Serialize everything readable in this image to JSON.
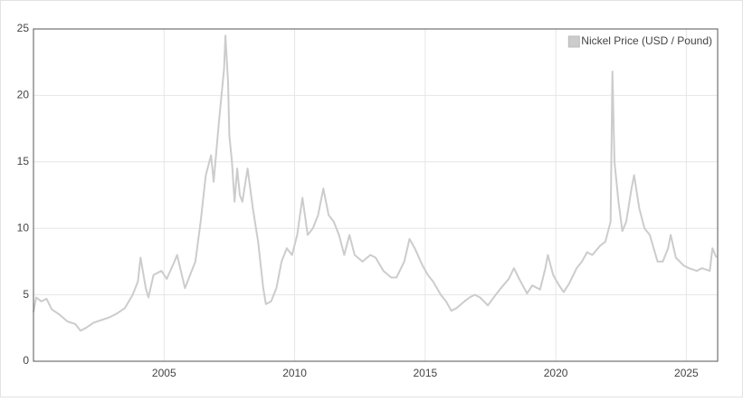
{
  "chart_data": {
    "type": "line",
    "xlim": [
      2000,
      2026.2
    ],
    "xticks": [
      2005,
      2010,
      2015,
      2020,
      2025
    ],
    "ylim": [
      0,
      25
    ],
    "yticks": [
      0,
      5,
      10,
      15,
      20,
      25
    ],
    "grid": true,
    "legend": "top-right",
    "x": [
      2000.0,
      2000.1,
      2000.3,
      2000.5,
      2000.7,
      2001.0,
      2001.3,
      2001.6,
      2001.8,
      2002.0,
      2002.3,
      2002.6,
      2002.9,
      2003.2,
      2003.5,
      2003.8,
      2004.0,
      2004.1,
      2004.3,
      2004.4,
      2004.6,
      2004.9,
      2005.1,
      2005.4,
      2005.5,
      2005.8,
      2006.0,
      2006.2,
      2006.4,
      2006.6,
      2006.8,
      2006.9,
      2007.1,
      2007.3,
      2007.35,
      2007.45,
      2007.5,
      2007.6,
      2007.7,
      2007.8,
      2007.9,
      2008.0,
      2008.2,
      2008.4,
      2008.6,
      2008.8,
      2008.9,
      2009.1,
      2009.3,
      2009.5,
      2009.7,
      2009.9,
      2010.1,
      2010.3,
      2010.5,
      2010.7,
      2010.9,
      2011.1,
      2011.3,
      2011.5,
      2011.7,
      2011.9,
      2012.1,
      2012.3,
      2012.6,
      2012.9,
      2013.1,
      2013.4,
      2013.7,
      2013.9,
      2014.2,
      2014.4,
      2014.6,
      2014.9,
      2015.1,
      2015.3,
      2015.6,
      2015.8,
      2016.0,
      2016.2,
      2016.5,
      2016.7,
      2016.9,
      2017.1,
      2017.4,
      2017.7,
      2017.9,
      2018.2,
      2018.4,
      2018.6,
      2018.9,
      2019.1,
      2019.4,
      2019.6,
      2019.7,
      2019.9,
      2020.1,
      2020.3,
      2020.5,
      2020.8,
      2021.0,
      2021.2,
      2021.4,
      2021.7,
      2021.9,
      2022.1,
      2022.17,
      2022.25,
      2022.4,
      2022.55,
      2022.7,
      2022.9,
      2023.0,
      2023.2,
      2023.4,
      2023.6,
      2023.9,
      2024.1,
      2024.3,
      2024.4,
      2024.6,
      2024.9,
      2025.1,
      2025.4,
      2025.6,
      2025.9,
      2026.0,
      2026.15
    ],
    "series": [
      {
        "name": "Nickel Price (USD / Pound)",
        "color": "#cccccc",
        "values": [
          3.7,
          4.8,
          4.5,
          4.7,
          3.9,
          3.5,
          3.0,
          2.8,
          2.3,
          2.5,
          2.9,
          3.1,
          3.3,
          3.6,
          4.0,
          5.0,
          6.0,
          7.8,
          5.5,
          4.8,
          6.5,
          6.8,
          6.2,
          7.5,
          8.0,
          5.5,
          6.5,
          7.5,
          10.5,
          14.0,
          15.5,
          13.5,
          18.0,
          22.0,
          24.5,
          21.0,
          17.0,
          15.0,
          12.0,
          14.5,
          12.5,
          12.0,
          14.5,
          11.5,
          9.0,
          5.5,
          4.3,
          4.5,
          5.5,
          7.5,
          8.5,
          8.0,
          9.5,
          12.3,
          9.5,
          10.0,
          11.0,
          13.0,
          11.0,
          10.5,
          9.5,
          8.0,
          9.5,
          8.0,
          7.5,
          8.0,
          7.8,
          6.8,
          6.3,
          6.3,
          7.5,
          9.2,
          8.5,
          7.2,
          6.5,
          6.0,
          5.0,
          4.5,
          3.8,
          4.0,
          4.5,
          4.8,
          5.0,
          4.8,
          4.2,
          5.0,
          5.5,
          6.2,
          7.0,
          6.2,
          5.1,
          5.7,
          5.4,
          7.0,
          8.0,
          6.5,
          5.8,
          5.2,
          5.8,
          7.0,
          7.5,
          8.2,
          8.0,
          8.7,
          9.0,
          10.5,
          21.8,
          15.0,
          12.0,
          9.8,
          10.5,
          13.0,
          14.0,
          11.5,
          10.0,
          9.5,
          7.5,
          7.5,
          8.5,
          9.5,
          7.8,
          7.2,
          7.0,
          6.8,
          7.0,
          6.8,
          8.5,
          7.8
        ]
      }
    ]
  }
}
